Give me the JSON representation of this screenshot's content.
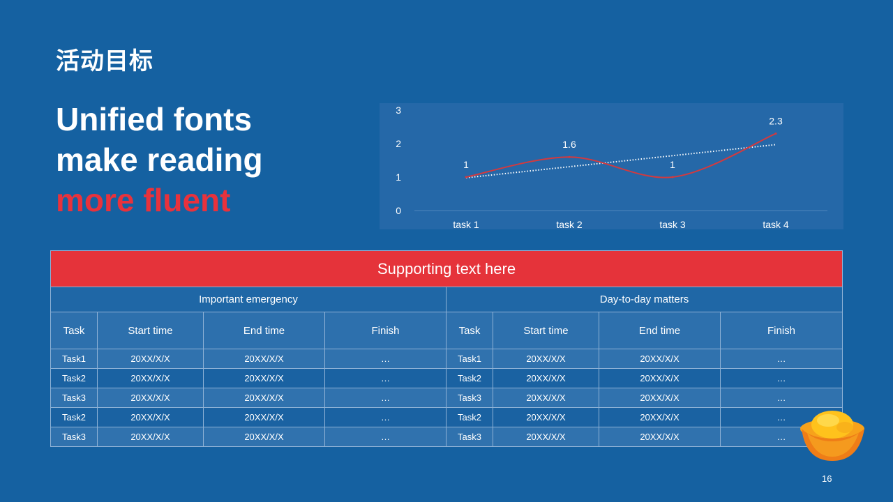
{
  "slide": {
    "title": "活动目标",
    "headline_line1": "Unified fonts",
    "headline_line2": "make reading",
    "headline_accent": "more fluent",
    "page_number": "16"
  },
  "colors": {
    "background": "#1561a1",
    "accent": "#e8323c",
    "banner": "#e5333a",
    "line": "#d23a3f",
    "trendline": "#ffffff"
  },
  "chart_data": {
    "type": "line",
    "categories": [
      "task 1",
      "task 2",
      "task 3",
      "task 4"
    ],
    "series": [
      {
        "values": [
          1,
          1.6,
          1,
          2.3
        ],
        "color": "#d23a3f",
        "smooth": true
      }
    ],
    "trendline": {
      "style": "dotted",
      "color": "#ffffff",
      "type": "linear"
    },
    "data_labels": [
      "1",
      "1.6",
      "1",
      "2.3"
    ],
    "y_ticks": [
      "0",
      "1",
      "2",
      "3"
    ],
    "ylim": [
      0,
      3
    ],
    "grid": false
  },
  "table": {
    "banner": "Supporting text here",
    "groups": [
      "Important emergency",
      "Day-to-day matters"
    ],
    "columns": [
      "Task",
      "Start time",
      "End time",
      "Finish",
      "Task",
      "Start time",
      "End time",
      "Finish"
    ],
    "rows": [
      [
        "Task1",
        "20XX/X/X",
        "20XX/X/X",
        "…",
        "Task1",
        "20XX/X/X",
        "20XX/X/X",
        "…"
      ],
      [
        "Task2",
        "20XX/X/X",
        "20XX/X/X",
        "…",
        "Task2",
        "20XX/X/X",
        "20XX/X/X",
        "…"
      ],
      [
        "Task3",
        "20XX/X/X",
        "20XX/X/X",
        "…",
        "Task3",
        "20XX/X/X",
        "20XX/X/X",
        "…"
      ],
      [
        "Task2",
        "20XX/X/X",
        "20XX/X/X",
        "…",
        "Task2",
        "20XX/X/X",
        "20XX/X/X",
        "…"
      ],
      [
        "Task3",
        "20XX/X/X",
        "20XX/X/X",
        "…",
        "Task3",
        "20XX/X/X",
        "20XX/X/X",
        "…"
      ]
    ]
  },
  "decor": {
    "icon": "gold-ingot-icon"
  }
}
